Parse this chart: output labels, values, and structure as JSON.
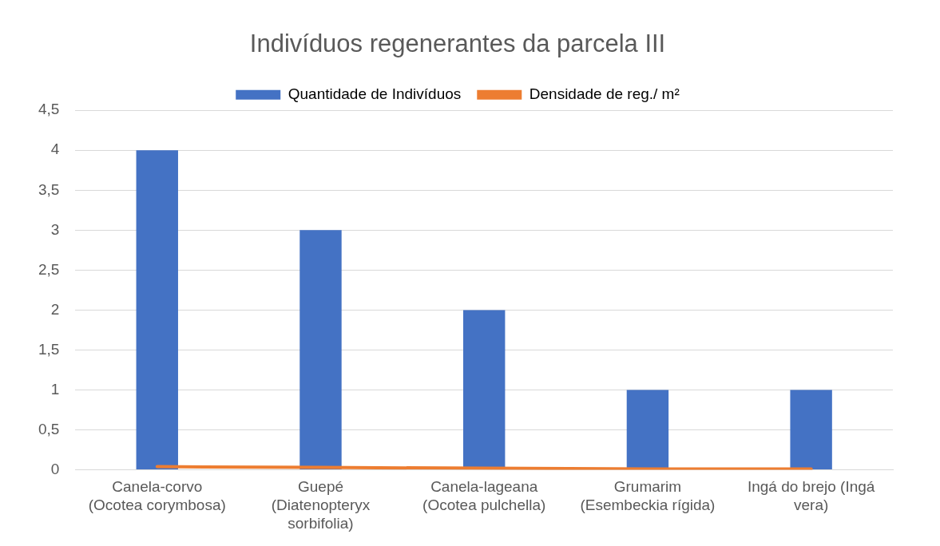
{
  "chart_data": {
    "type": "bar",
    "title": "Indivíduos regenerantes da parcela III",
    "categories": [
      "Canela-corvo (Ocotea corymbosa)",
      "Guepé (Diatenopteryx sorbifolia)",
      "Canela-lageana (Ocotea pulchella)",
      "Grumarim (Esembeckia rígida)",
      "Ingá do brejo (Ingá vera)"
    ],
    "series": [
      {
        "name": "Quantidade de Indivíduos",
        "color": "#4472c4",
        "values": [
          4,
          3,
          2,
          1,
          1
        ]
      },
      {
        "name": "Densidade de reg./ m²",
        "type": "line",
        "color": "#ed7d31",
        "values": [
          0.04,
          0.03,
          0.02,
          0.01,
          0.01
        ]
      }
    ],
    "ylim": [
      0,
      4.5
    ],
    "yticks": [
      {
        "value": 0,
        "label": "0"
      },
      {
        "value": 0.5,
        "label": "0,5"
      },
      {
        "value": 1,
        "label": "1"
      },
      {
        "value": 1.5,
        "label": "1,5"
      },
      {
        "value": 2,
        "label": "2"
      },
      {
        "value": 2.5,
        "label": "2,5"
      },
      {
        "value": 3,
        "label": "3"
      },
      {
        "value": 3.5,
        "label": "3,5"
      },
      {
        "value": 4,
        "label": "4"
      },
      {
        "value": 4.5,
        "label": "4,5"
      }
    ],
    "grid": "y",
    "legend": "top",
    "marker": "none"
  }
}
